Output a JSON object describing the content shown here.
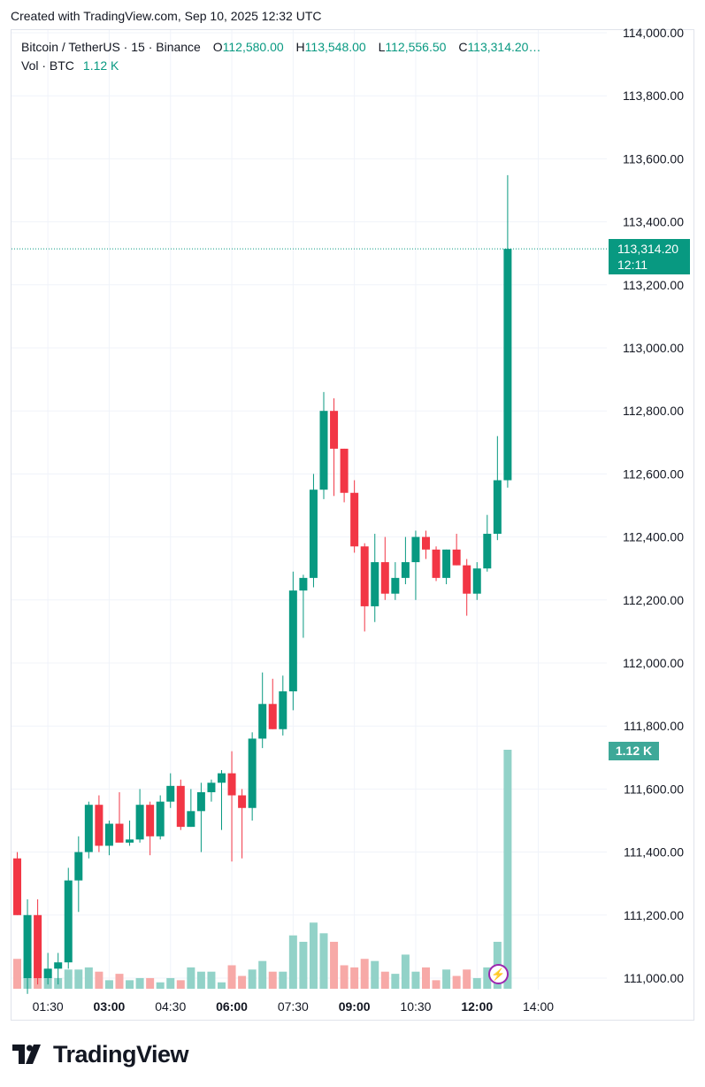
{
  "header": {
    "created_text": "Created with TradingView.com, Sep 10, 2025 12:32 UTC"
  },
  "legend": {
    "symbol": "Bitcoin / TetherUS · 15 · Binance",
    "o_label": "O",
    "o_value": "112,580.00",
    "h_label": "H",
    "h_value": "113,548.00",
    "l_label": "L",
    "l_value": "112,556.50",
    "c_label": "C",
    "c_value": "113,314.20…",
    "vol_label": "Vol · BTC",
    "vol_value": "1.12 K"
  },
  "badges": {
    "last_price": "113,314.20",
    "countdown": "12:11",
    "last_volume": "1.12 K"
  },
  "brand": {
    "name": "TradingView"
  },
  "colors": {
    "up": "#089981",
    "down": "#f23645",
    "vol_up": "#92d2c8",
    "vol_down": "#f7a9a7",
    "grid": "#f0f3fa"
  },
  "chart_data": {
    "type": "candlestick",
    "title": "Bitcoin / TetherUS · 15 · Binance",
    "interval": "15m",
    "time_ticks": [
      "01:30",
      "03:00",
      "04:30",
      "06:00",
      "07:30",
      "09:00",
      "10:30",
      "12:00",
      "14:00"
    ],
    "price_ticks": [
      "114,000.00",
      "113,800.00",
      "113,600.00",
      "113,400.00",
      "113,200.00",
      "113,000.00",
      "112,800.00",
      "112,600.00",
      "112,400.00",
      "112,200.00",
      "112,000.00",
      "111,800.00",
      "111,600.00",
      "111,400.00",
      "111,200.00",
      "111,000.00"
    ],
    "ylim": [
      111000,
      114000
    ],
    "last_price": 113314.2,
    "candles": [
      {
        "t": "00:30",
        "o": 111380,
        "h": 111400,
        "l": 111200,
        "c": 111200,
        "v": 0.14
      },
      {
        "t": "00:45",
        "o": 111000,
        "h": 111250,
        "l": 110950,
        "c": 111200,
        "v": 0.12
      },
      {
        "t": "01:00",
        "o": 111200,
        "h": 111250,
        "l": 110980,
        "c": 111000,
        "v": 0.18
      },
      {
        "t": "01:15",
        "o": 111000,
        "h": 111080,
        "l": 110980,
        "c": 111030,
        "v": 0.09
      },
      {
        "t": "01:30",
        "o": 111030,
        "h": 111080,
        "l": 110980,
        "c": 111050,
        "v": 0.05
      },
      {
        "t": "01:45",
        "o": 111050,
        "h": 111350,
        "l": 111030,
        "c": 111310,
        "v": 0.09
      },
      {
        "t": "02:00",
        "o": 111310,
        "h": 111450,
        "l": 111210,
        "c": 111400,
        "v": 0.09
      },
      {
        "t": "02:15",
        "o": 111400,
        "h": 111560,
        "l": 111380,
        "c": 111550,
        "v": 0.1
      },
      {
        "t": "02:30",
        "o": 111550,
        "h": 111580,
        "l": 111400,
        "c": 111420,
        "v": 0.08
      },
      {
        "t": "02:45",
        "o": 111420,
        "h": 111500,
        "l": 111390,
        "c": 111490,
        "v": 0.04
      },
      {
        "t": "03:00",
        "o": 111490,
        "h": 111590,
        "l": 111450,
        "c": 111430,
        "v": 0.07
      },
      {
        "t": "03:15",
        "o": 111430,
        "h": 111500,
        "l": 111420,
        "c": 111440,
        "v": 0.04
      },
      {
        "t": "03:30",
        "o": 111440,
        "h": 111600,
        "l": 111430,
        "c": 111550,
        "v": 0.05
      },
      {
        "t": "03:45",
        "o": 111550,
        "h": 111560,
        "l": 111390,
        "c": 111450,
        "v": 0.05
      },
      {
        "t": "04:00",
        "o": 111450,
        "h": 111580,
        "l": 111440,
        "c": 111560,
        "v": 0.03
      },
      {
        "t": "04:15",
        "o": 111560,
        "h": 111650,
        "l": 111540,
        "c": 111610,
        "v": 0.05
      },
      {
        "t": "04:30",
        "o": 111610,
        "h": 111630,
        "l": 111470,
        "c": 111480,
        "v": 0.04
      },
      {
        "t": "04:45",
        "o": 111480,
        "h": 111600,
        "l": 111480,
        "c": 111530,
        "v": 0.1
      },
      {
        "t": "05:00",
        "o": 111530,
        "h": 111620,
        "l": 111400,
        "c": 111590,
        "v": 0.08
      },
      {
        "t": "05:15",
        "o": 111590,
        "h": 111630,
        "l": 111560,
        "c": 111620,
        "v": 0.08
      },
      {
        "t": "05:30",
        "o": 111620,
        "h": 111660,
        "l": 111470,
        "c": 111650,
        "v": 0.03
      },
      {
        "t": "05:45",
        "o": 111650,
        "h": 111720,
        "l": 111370,
        "c": 111580,
        "v": 0.11
      },
      {
        "t": "06:00",
        "o": 111580,
        "h": 111600,
        "l": 111380,
        "c": 111540,
        "v": 0.06
      },
      {
        "t": "06:15",
        "o": 111540,
        "h": 111780,
        "l": 111500,
        "c": 111760,
        "v": 0.09
      },
      {
        "t": "06:30",
        "o": 111760,
        "h": 111970,
        "l": 111730,
        "c": 111870,
        "v": 0.13
      },
      {
        "t": "06:45",
        "o": 111870,
        "h": 111950,
        "l": 111790,
        "c": 111790,
        "v": 0.08
      },
      {
        "t": "07:00",
        "o": 111790,
        "h": 111960,
        "l": 111770,
        "c": 111910,
        "v": 0.08
      },
      {
        "t": "07:15",
        "o": 111910,
        "h": 112290,
        "l": 111850,
        "c": 112230,
        "v": 0.25
      },
      {
        "t": "07:30",
        "o": 112230,
        "h": 112280,
        "l": 112080,
        "c": 112270,
        "v": 0.22
      },
      {
        "t": "07:45",
        "o": 112270,
        "h": 112600,
        "l": 112240,
        "c": 112550,
        "v": 0.31
      },
      {
        "t": "08:00",
        "o": 112550,
        "h": 112860,
        "l": 112520,
        "c": 112800,
        "v": 0.26
      },
      {
        "t": "08:15",
        "o": 112800,
        "h": 112840,
        "l": 112530,
        "c": 112680,
        "v": 0.22
      },
      {
        "t": "08:30",
        "o": 112680,
        "h": 112680,
        "l": 112510,
        "c": 112540,
        "v": 0.11
      },
      {
        "t": "08:45",
        "o": 112540,
        "h": 112580,
        "l": 112350,
        "c": 112370,
        "v": 0.1
      },
      {
        "t": "09:00",
        "o": 112370,
        "h": 112380,
        "l": 112100,
        "c": 112180,
        "v": 0.14
      },
      {
        "t": "09:15",
        "o": 112180,
        "h": 112410,
        "l": 112130,
        "c": 112320,
        "v": 0.13
      },
      {
        "t": "09:30",
        "o": 112320,
        "h": 112400,
        "l": 112200,
        "c": 112220,
        "v": 0.08
      },
      {
        "t": "09:45",
        "o": 112220,
        "h": 112320,
        "l": 112200,
        "c": 112270,
        "v": 0.07
      },
      {
        "t": "10:00",
        "o": 112270,
        "h": 112400,
        "l": 112250,
        "c": 112320,
        "v": 0.16
      },
      {
        "t": "10:15",
        "o": 112320,
        "h": 112420,
        "l": 112200,
        "c": 112400,
        "v": 0.08
      },
      {
        "t": "10:30",
        "o": 112400,
        "h": 112420,
        "l": 112330,
        "c": 112360,
        "v": 0.1
      },
      {
        "t": "10:45",
        "o": 112360,
        "h": 112370,
        "l": 112260,
        "c": 112270,
        "v": 0.04
      },
      {
        "t": "11:00",
        "o": 112270,
        "h": 112360,
        "l": 112250,
        "c": 112360,
        "v": 0.09
      },
      {
        "t": "11:15",
        "o": 112360,
        "h": 112410,
        "l": 112310,
        "c": 112310,
        "v": 0.06
      },
      {
        "t": "11:30",
        "o": 112310,
        "h": 112330,
        "l": 112150,
        "c": 112220,
        "v": 0.09
      },
      {
        "t": "11:45",
        "o": 112220,
        "h": 112320,
        "l": 112200,
        "c": 112300,
        "v": 0.05
      },
      {
        "t": "12:00",
        "o": 112300,
        "h": 112470,
        "l": 112290,
        "c": 112410,
        "v": 0.1
      },
      {
        "t": "12:15",
        "o": 112410,
        "h": 112720,
        "l": 112390,
        "c": 112580,
        "v": 0.22
      },
      {
        "t": "12:30",
        "o": 112580,
        "h": 113548,
        "l": 112556.5,
        "c": 113314.2,
        "v": 1.12
      }
    ]
  }
}
